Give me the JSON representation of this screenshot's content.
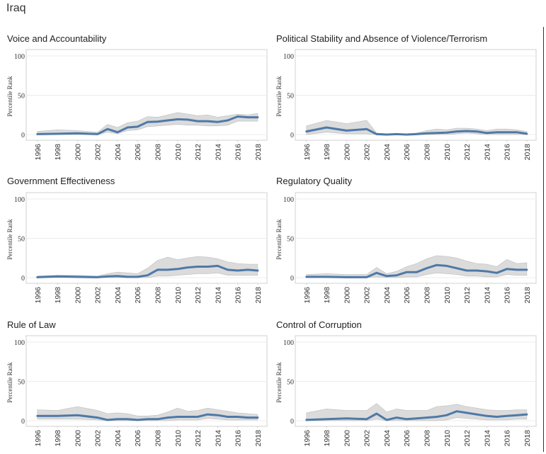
{
  "page": {
    "title": "Iraq"
  },
  "colors": {
    "line": "#4e79a7",
    "band": "#cfcfcf",
    "axis": "#d0d0d0",
    "text": "#333333"
  },
  "chart_data": [
    {
      "type": "line",
      "title": "Voice and Accountability",
      "ylabel": "Percentile Rank",
      "xlabel": "",
      "ylim": [
        0,
        100
      ],
      "yticks": [
        0,
        50,
        100
      ],
      "xticks": [
        "1996",
        "1998",
        "2000",
        "2002",
        "2004",
        "2006",
        "2008",
        "2010",
        "2012",
        "2014",
        "2016",
        "2018"
      ],
      "x": [
        1996,
        1998,
        2000,
        2002,
        2003,
        2004,
        2005,
        2006,
        2007,
        2008,
        2009,
        2010,
        2011,
        2012,
        2013,
        2014,
        2015,
        2016,
        2017,
        2018
      ],
      "series": [
        {
          "values": [
            0.5,
            1,
            1.5,
            0.5,
            7,
            3,
            9,
            10,
            16,
            16.5,
            18,
            19.5,
            19,
            17,
            17,
            16,
            18,
            23,
            22,
            22
          ]
        }
      ],
      "band": {
        "upper": [
          4,
          6,
          5,
          3,
          13,
          9,
          15,
          17,
          23,
          22,
          25,
          28,
          26,
          24,
          25,
          22,
          24,
          26,
          25,
          27
        ],
        "lower": [
          0,
          0,
          0,
          0,
          3,
          1,
          5,
          6,
          10,
          11,
          12,
          13,
          12,
          12,
          11,
          11,
          12,
          17,
          17,
          17
        ]
      }
    },
    {
      "type": "line",
      "title": "Political Stability and Absence of Violence/Terrorism",
      "ylabel": "Percentile Rank",
      "xlabel": "",
      "ylim": [
        0,
        100
      ],
      "yticks": [
        0,
        50,
        100
      ],
      "xticks": [
        "1996",
        "1998",
        "2000",
        "2002",
        "2004",
        "2006",
        "2008",
        "2010",
        "2012",
        "2014",
        "2016",
        "2018"
      ],
      "x": [
        1996,
        1998,
        2000,
        2002,
        2003,
        2004,
        2005,
        2006,
        2007,
        2008,
        2009,
        2010,
        2011,
        2012,
        2013,
        2014,
        2015,
        2016,
        2017,
        2018
      ],
      "series": [
        {
          "values": [
            4,
            9,
            5,
            7,
            0.5,
            0,
            0.5,
            0,
            0.5,
            1.5,
            2,
            2.5,
            4,
            4.5,
            4,
            2,
            3,
            3,
            3,
            1
          ]
        }
      ],
      "band": {
        "upper": [
          11,
          18,
          14,
          18,
          2,
          1,
          1,
          1,
          2,
          5,
          7,
          6,
          8,
          8,
          7,
          5,
          7,
          7,
          6,
          4
        ],
        "lower": [
          0,
          3,
          1,
          1,
          0,
          0,
          0,
          0,
          0,
          0,
          0,
          0,
          1,
          2,
          1,
          0,
          0,
          0,
          0,
          0
        ]
      }
    },
    {
      "type": "line",
      "title": "Government Effectiveness",
      "ylabel": "Percentile Rank",
      "xlabel": "",
      "ylim": [
        0,
        100
      ],
      "yticks": [
        0,
        50,
        100
      ],
      "xticks": [
        "1996",
        "1998",
        "2000",
        "2002",
        "2004",
        "2006",
        "2008",
        "2010",
        "2012",
        "2014",
        "2016",
        "2018"
      ],
      "x": [
        1996,
        1998,
        2000,
        2002,
        2003,
        2004,
        2005,
        2006,
        2007,
        2008,
        2009,
        2010,
        2011,
        2012,
        2013,
        2014,
        2015,
        2016,
        2017,
        2018
      ],
      "series": [
        {
          "values": [
            0.5,
            1.5,
            1,
            0.5,
            1.5,
            2,
            1,
            1,
            3,
            10,
            10,
            11,
            13,
            14,
            14,
            15,
            10,
            9,
            10,
            9
          ]
        }
      ],
      "band": {
        "upper": [
          2,
          3,
          3,
          2,
          5,
          7,
          6,
          5,
          12,
          22,
          26,
          23,
          25,
          27,
          26,
          24,
          20,
          18,
          17,
          17
        ],
        "lower": [
          0,
          0,
          0,
          0,
          0,
          0,
          0,
          0,
          0,
          2,
          2,
          3,
          4,
          5,
          5,
          6,
          3,
          3,
          3,
          3
        ]
      }
    },
    {
      "type": "line",
      "title": "Regulatory Quality",
      "ylabel": "Percentile Rank",
      "xlabel": "",
      "ylim": [
        0,
        100
      ],
      "yticks": [
        0,
        50,
        100
      ],
      "xticks": [
        "1996",
        "1998",
        "2000",
        "2002",
        "2004",
        "2006",
        "2008",
        "2010",
        "2012",
        "2014",
        "2016",
        "2018"
      ],
      "x": [
        1996,
        1998,
        2000,
        2002,
        2003,
        2004,
        2005,
        2006,
        2007,
        2008,
        2009,
        2010,
        2011,
        2012,
        2013,
        2014,
        2015,
        2016,
        2017,
        2018
      ],
      "series": [
        {
          "values": [
            1,
            1,
            0.5,
            0.5,
            6,
            2,
            3,
            7,
            7,
            12,
            16,
            15,
            12,
            9,
            9,
            8,
            6,
            11,
            10,
            10
          ]
        }
      ],
      "band": {
        "upper": [
          4,
          5,
          4,
          4,
          13,
          5,
          8,
          14,
          18,
          24,
          28,
          27,
          25,
          21,
          18,
          17,
          14,
          23,
          18,
          19
        ],
        "lower": [
          0,
          0,
          0,
          0,
          1,
          0,
          0,
          1,
          1,
          4,
          6,
          5,
          4,
          2,
          2,
          1,
          1,
          4,
          3,
          3
        ]
      }
    },
    {
      "type": "line",
      "title": "Rule of Law",
      "ylabel": "Percentile Rank",
      "xlabel": "",
      "ylim": [
        0,
        100
      ],
      "yticks": [
        0,
        50,
        100
      ],
      "xticks": [
        "1996",
        "1998",
        "2000",
        "2002",
        "2004",
        "2006",
        "2008",
        "2010",
        "2012",
        "2014",
        "2016",
        "2018"
      ],
      "x": [
        1996,
        1998,
        2000,
        2002,
        2003,
        2004,
        2005,
        2006,
        2007,
        2008,
        2009,
        2010,
        2011,
        2012,
        2013,
        2014,
        2015,
        2016,
        2017,
        2018
      ],
      "series": [
        {
          "values": [
            6,
            6,
            7,
            4,
            1,
            2,
            2,
            1,
            2,
            2,
            4,
            5,
            5,
            5,
            8,
            7,
            5,
            5,
            4,
            4
          ]
        }
      ],
      "band": {
        "upper": [
          14,
          13,
          18,
          13,
          9,
          10,
          9,
          6,
          6,
          7,
          11,
          16,
          12,
          13,
          16,
          14,
          12,
          10,
          9,
          8
        ],
        "lower": [
          2,
          2,
          2,
          1,
          0,
          0,
          0,
          0,
          0,
          0,
          0,
          1,
          1,
          1,
          3,
          2,
          1,
          1,
          1,
          1
        ]
      }
    },
    {
      "type": "line",
      "title": "Control of Corruption",
      "ylabel": "Percentile Rank",
      "xlabel": "",
      "ylim": [
        0,
        100
      ],
      "yticks": [
        0,
        50,
        100
      ],
      "xticks": [
        "1996",
        "1998",
        "2000",
        "2002",
        "2004",
        "2006",
        "2008",
        "2010",
        "2012",
        "2014",
        "2016",
        "2018"
      ],
      "x": [
        1996,
        1998,
        2000,
        2002,
        2003,
        2004,
        2005,
        2006,
        2007,
        2008,
        2009,
        2010,
        2011,
        2012,
        2013,
        2014,
        2015,
        2016,
        2017,
        2018
      ],
      "series": [
        {
          "values": [
            1,
            2,
            3,
            2,
            9,
            1,
            4,
            2,
            3,
            4,
            5,
            7,
            12,
            10,
            8,
            6,
            5,
            6,
            7,
            8
          ]
        }
      ],
      "band": {
        "upper": [
          10,
          15,
          13,
          13,
          22,
          11,
          15,
          13,
          13,
          13,
          18,
          19,
          21,
          18,
          16,
          14,
          13,
          13,
          14,
          14
        ],
        "lower": [
          0,
          0,
          0,
          0,
          2,
          0,
          0,
          0,
          0,
          0,
          0,
          1,
          4,
          3,
          2,
          1,
          1,
          1,
          2,
          2
        ]
      }
    }
  ]
}
